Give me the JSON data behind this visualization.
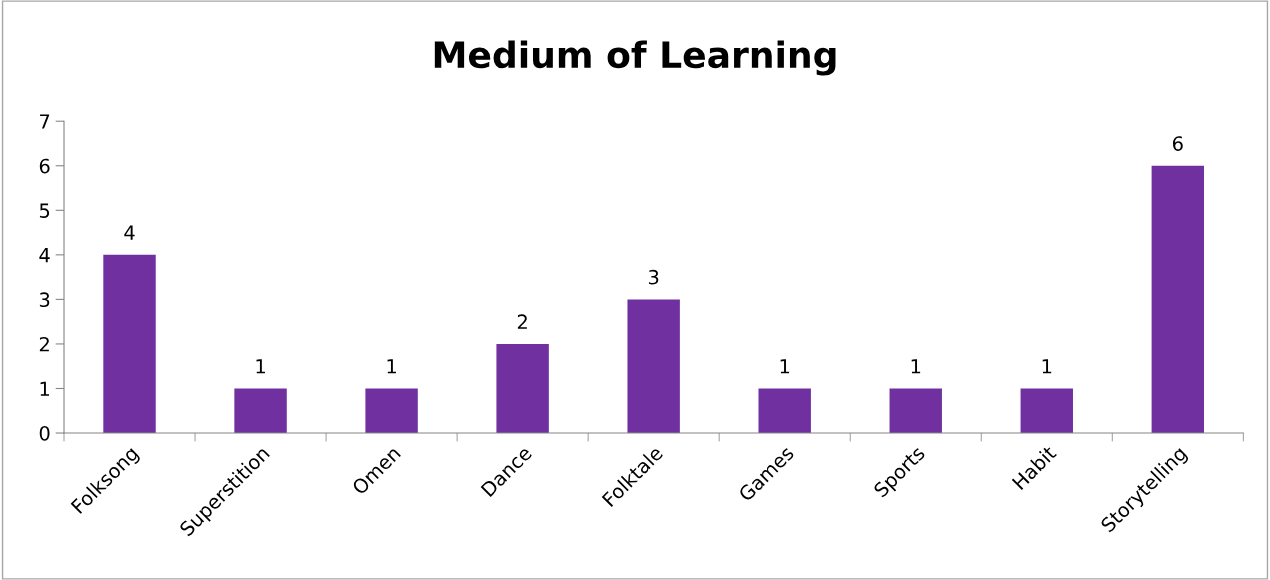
{
  "chart_data": {
    "type": "bar",
    "title": "Medium of Learning",
    "categories": [
      "Folksong",
      "Superstition",
      "Omen",
      "Dance",
      "Folktale",
      "Games",
      "Sports",
      "Habit",
      "Storytelling"
    ],
    "values": [
      4,
      1,
      1,
      2,
      3,
      1,
      1,
      1,
      6
    ],
    "color": "#7030a0",
    "ylim": [
      0,
      7
    ],
    "yticks": [
      0,
      1,
      2,
      3,
      4,
      5,
      6,
      7
    ],
    "data_labels": true,
    "grid": false,
    "legend": false
  }
}
